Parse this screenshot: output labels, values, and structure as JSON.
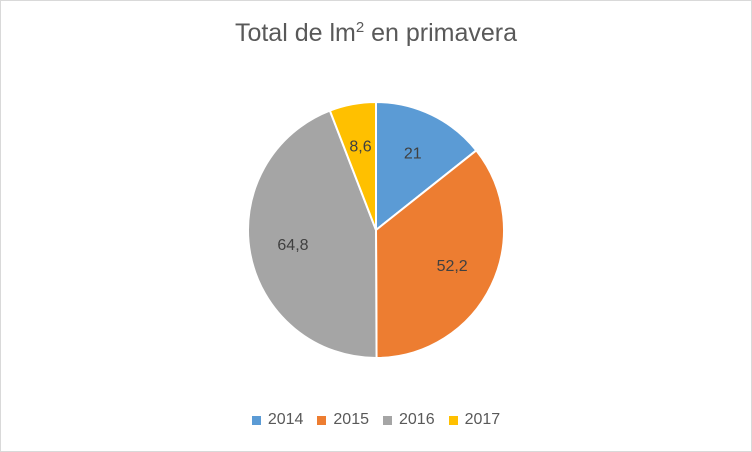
{
  "chart_data": {
    "type": "pie",
    "title": "Total de lm",
    "title_superscript": "2",
    "title_suffix": " en primavera",
    "categories": [
      "2014",
      "2015",
      "2016",
      "2017"
    ],
    "values": [
      21,
      52.2,
      64.8,
      8.6
    ],
    "data_labels": [
      "21",
      "52,2",
      "64,8",
      "8,6"
    ],
    "colors": [
      "#5b9bd5",
      "#ed7d31",
      "#a5a5a5",
      "#ffc000"
    ],
    "legend_position": "bottom"
  }
}
